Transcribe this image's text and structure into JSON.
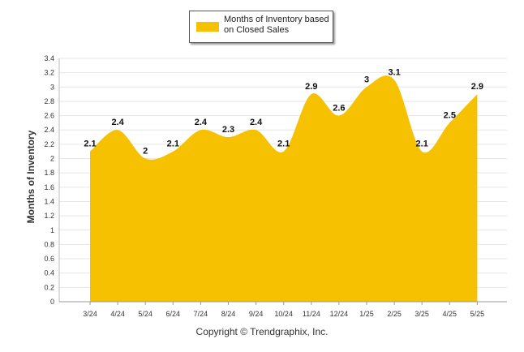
{
  "chart_data": {
    "type": "area",
    "title": "",
    "xlabel": "",
    "ylabel": "Months of Inventory",
    "ylim": [
      0,
      3.4
    ],
    "ytick_step": 0.2,
    "grid": true,
    "legend_placement": "top-center",
    "color": "#F6C100",
    "categories": [
      "3/24",
      "4/24",
      "5/24",
      "6/24",
      "7/24",
      "8/24",
      "9/24",
      "10/24",
      "11/24",
      "12/24",
      "1/25",
      "2/25",
      "3/25",
      "4/25",
      "5/25"
    ],
    "series": [
      {
        "name": "Months of Inventory based on Closed Sales",
        "values": [
          2.1,
          2.4,
          2,
          2.1,
          2.4,
          2.3,
          2.4,
          2.1,
          2.9,
          2.6,
          3,
          3.1,
          2.1,
          2.5,
          2.9
        ]
      }
    ]
  },
  "footer": {
    "copyright": "Copyright © Trendgraphix, Inc."
  }
}
